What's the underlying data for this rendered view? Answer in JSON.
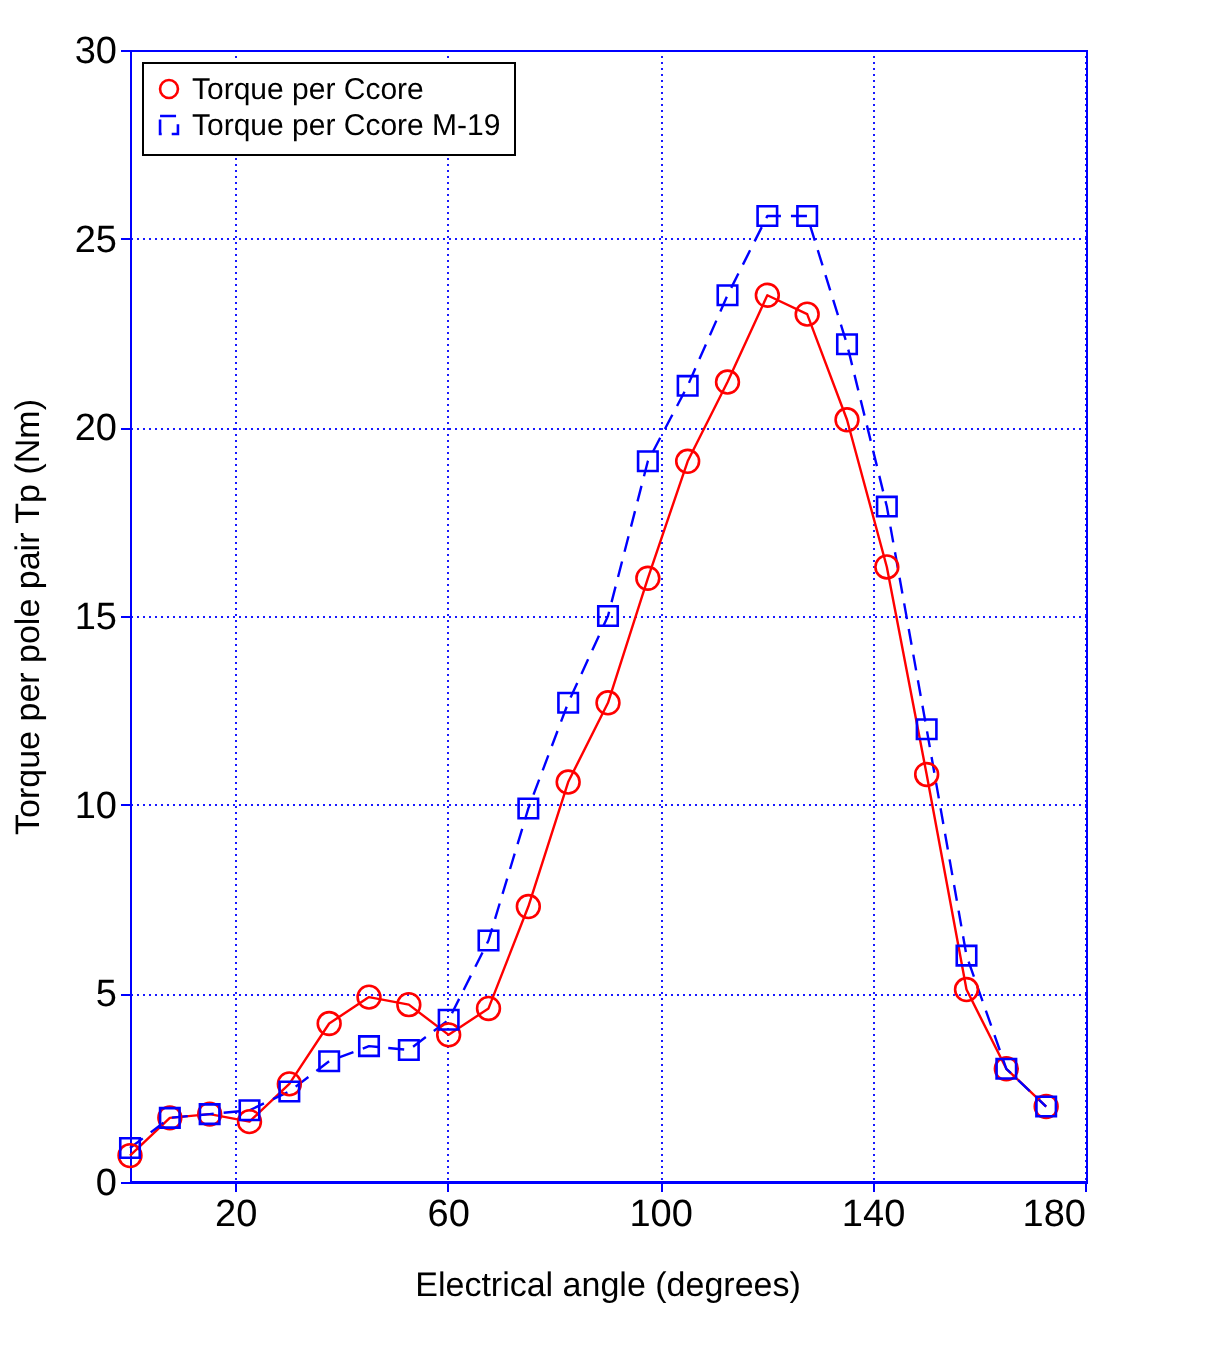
{
  "chart_data": {
    "type": "line",
    "xlabel": "Electrical angle (degrees)",
    "ylabel": "Torque per pole pair Tp (Nm)",
    "x": [
      0,
      7.5,
      15,
      22.5,
      30,
      37.5,
      45,
      52.5,
      60,
      67.5,
      75,
      82.5,
      90,
      97.5,
      105,
      112.5,
      120,
      127.5,
      135,
      142.5,
      150,
      157.5,
      165,
      172.5
    ],
    "series": [
      {
        "name": "Torque per Ccore",
        "color": "#ff0000",
        "marker": "circle",
        "line_style": "solid",
        "values": [
          0.7,
          1.7,
          1.8,
          1.6,
          2.6,
          4.2,
          4.9,
          4.7,
          3.9,
          4.6,
          7.3,
          10.6,
          12.7,
          16.0,
          19.1,
          21.2,
          23.5,
          23.0,
          20.2,
          16.3,
          10.8,
          5.1,
          3.0,
          2.0
        ]
      },
      {
        "name": "Torque per Ccore M-19",
        "color": "#0000ff",
        "marker": "square",
        "line_style": "dashed",
        "values": [
          0.9,
          1.7,
          1.8,
          1.9,
          2.4,
          3.2,
          3.6,
          3.5,
          4.3,
          6.4,
          9.9,
          12.7,
          15.0,
          19.1,
          21.1,
          23.5,
          25.6,
          25.6,
          22.2,
          17.9,
          12.0,
          6.0,
          3.0,
          2.0
        ]
      }
    ],
    "xlim": [
      0,
      180
    ],
    "xticks": [
      20,
      60,
      100,
      140,
      180
    ],
    "ylim": [
      0,
      30
    ],
    "yticks": [
      0,
      5,
      10,
      15,
      20,
      25,
      30
    ],
    "grid": true,
    "legend": "top left"
  }
}
